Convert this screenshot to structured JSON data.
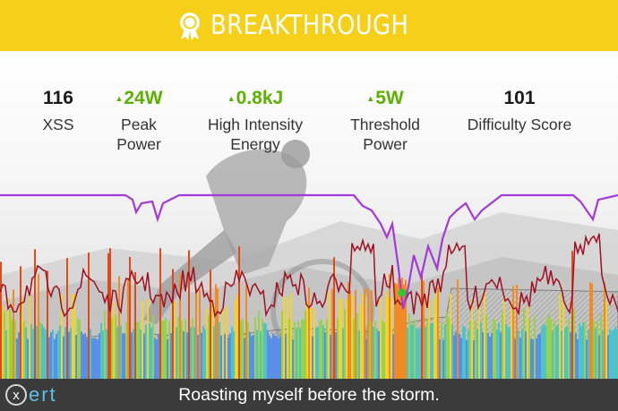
{
  "banner": {
    "title": "BREAKTHROUGH",
    "icon": "award-ribbon-icon",
    "color": "#f5cf18"
  },
  "metrics": [
    {
      "value": "116",
      "label_line1": "XSS",
      "label_line2": "",
      "trend": "none"
    },
    {
      "value": "24W",
      "label_line1": "Peak",
      "label_line2": "Power",
      "trend": "up",
      "color": "#5cb000"
    },
    {
      "value": "0.8kJ",
      "label_line1": "High Intensity",
      "label_line2": "Energy",
      "trend": "up",
      "color": "#5cb000"
    },
    {
      "value": "5W",
      "label_line1": "Threshold",
      "label_line2": "Power",
      "trend": "up",
      "color": "#5cb000"
    },
    {
      "value": "101",
      "label_line1": "Difficulty Score",
      "label_line2": "",
      "trend": "none"
    }
  ],
  "chart_data": {
    "type": "area",
    "title": "",
    "xlabel": "",
    "ylabel": "",
    "grid": false,
    "legend": "none",
    "series": [
      {
        "kind": "power-bars",
        "color_scale": [
          "#5b8fe6",
          "#4fc3c8",
          "#9ad14b",
          "#f2d22e",
          "#f08a24",
          "#e04a1a"
        ]
      },
      {
        "kind": "heart-rate-line",
        "color": "#a01020"
      },
      {
        "kind": "training-load-line",
        "color": "#a33ad8"
      },
      {
        "kind": "elevation-area",
        "color": "#888888"
      }
    ],
    "markers": [
      {
        "kind": "breakthrough-point",
        "color": "#2ec82e"
      }
    ]
  },
  "footer": {
    "logo_mark": "x",
    "logo_text": "ert",
    "caption": "Roasting myself before the storm."
  }
}
